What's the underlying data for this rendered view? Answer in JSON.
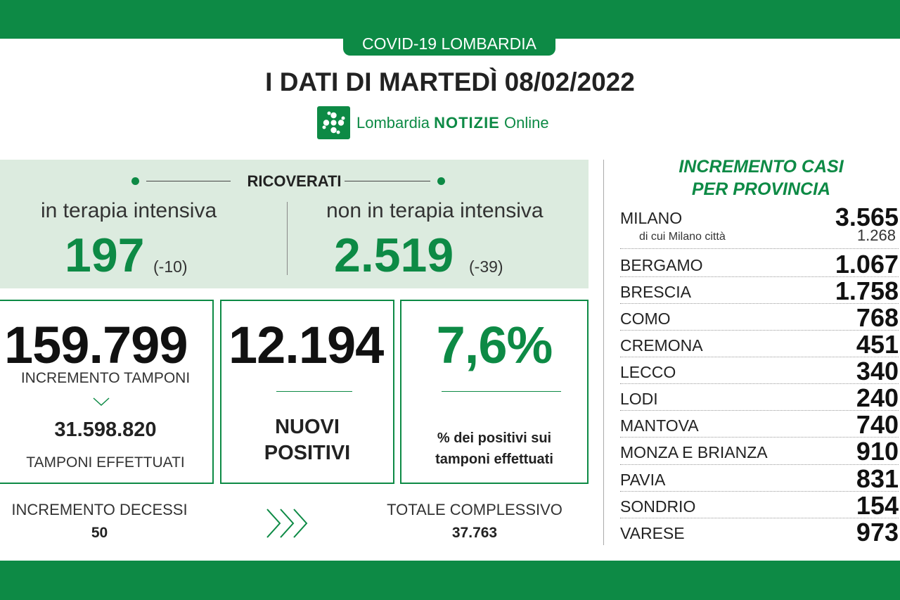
{
  "header": {
    "tag": "COVID-19 LOMBARDIA",
    "headline": "I DATI DI MARTEDÌ 08/02/2022",
    "logo_regular": "Lombardia ",
    "logo_bold": "NOTIZIE",
    "logo_suffix": " Online"
  },
  "ricoverati": {
    "title": "RICOVERATI",
    "intensive": {
      "label": "in terapia intensiva",
      "value": "197",
      "delta": "(-10)"
    },
    "non_intensive": {
      "label": "non in terapia intensiva",
      "value": "2.519",
      "delta": "(-39)"
    }
  },
  "tamponi": {
    "value": "159.799",
    "label": "INCREMENTO TAMPONI",
    "total": "31.598.820",
    "total_label": "TAMPONI EFFETTUATI"
  },
  "positivi": {
    "value": "12.194",
    "label_line1": "NUOVI",
    "label_line2": "POSITIVI"
  },
  "percentuale": {
    "value": "7,6%",
    "label_line1": "% dei positivi sui",
    "label_line2": "tamponi effettuati"
  },
  "decessi": {
    "label": "INCREMENTO DECESSI",
    "value": "50",
    "total_label": "TOTALE COMPLESSIVO",
    "total_value": "37.763"
  },
  "province": {
    "title_line1": "INCREMENTO CASI",
    "title_line2": "PER PROVINCIA",
    "milano_city_label": "di cui Milano città",
    "milano_city_value": "1.268",
    "rows": [
      {
        "name": "MILANO",
        "value": "3.565"
      },
      {
        "name": "BERGAMO",
        "value": "1.067"
      },
      {
        "name": "BRESCIA",
        "value": "1.758"
      },
      {
        "name": "COMO",
        "value": "768"
      },
      {
        "name": "CREMONA",
        "value": "451"
      },
      {
        "name": "LECCO",
        "value": "340"
      },
      {
        "name": "LODI",
        "value": "240"
      },
      {
        "name": "MANTOVA",
        "value": "740"
      },
      {
        "name": "MONZA E BRIANZA",
        "value": "910"
      },
      {
        "name": "PAVIA",
        "value": "831"
      },
      {
        "name": "SONDRIO",
        "value": "154"
      },
      {
        "name": "VARESE",
        "value": "973"
      }
    ]
  },
  "colors": {
    "accent": "#0d8a45",
    "panel": "#dcebdf"
  },
  "icons": {
    "logo": "rosa-camuna-icon",
    "arrows": "triple-chevron-right-icon",
    "chevron": "chevron-down-icon"
  }
}
